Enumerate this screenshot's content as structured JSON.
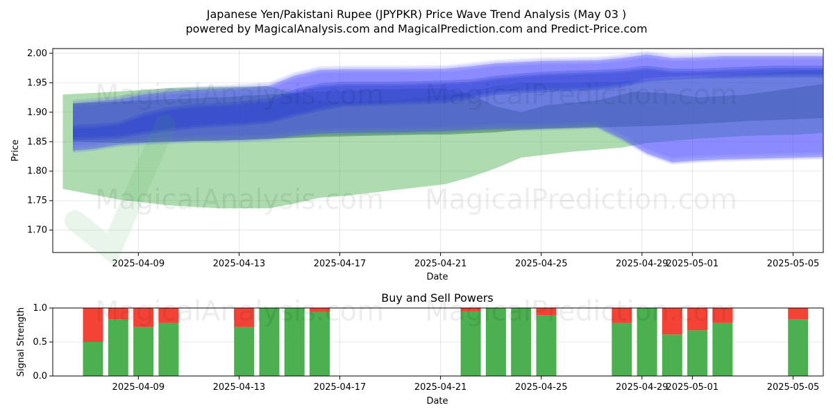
{
  "page": {
    "title_line1": "Japanese Yen/Pakistani Rupee (JPYPKR) Price Wave Trend Analysis (May 03 )",
    "title_line2": "powered by MagicalAnalysis.com and MagicalPrediction.com and Predict-Price.com",
    "watermarks": [
      "MagicalAnalysis.com",
      "MagicalPrediction.com",
      "MagicalAnalysis.com",
      "MagicalPrediction.com",
      "MagicalAnalysis.com",
      "MagicalPrediction.com"
    ]
  },
  "chart_data": [
    {
      "type": "area",
      "title": "",
      "xlabel": "Date",
      "ylabel": "Price",
      "ylim": [
        1.662,
        2.008
      ],
      "xlim_days": [
        -0.6,
        30.0
      ],
      "x_ticks": [
        {
          "day": 2.8,
          "label": "2025-04-09"
        },
        {
          "day": 6.8,
          "label": "2025-04-13"
        },
        {
          "day": 10.8,
          "label": "2025-04-17"
        },
        {
          "day": 14.8,
          "label": "2025-04-21"
        },
        {
          "day": 18.8,
          "label": "2025-04-25"
        },
        {
          "day": 22.8,
          "label": "2025-04-29"
        },
        {
          "day": 24.8,
          "label": "2025-05-01"
        },
        {
          "day": 28.8,
          "label": "2025-05-05"
        }
      ],
      "y_ticks": [
        1.7,
        1.75,
        1.8,
        1.85,
        1.9,
        1.95,
        2.0
      ],
      "y_tick_labels": [
        "1.70",
        "1.75",
        "1.80",
        "1.85",
        "1.90",
        "1.95",
        "2.00"
      ],
      "series": [
        {
          "name": "green wave band (wide)",
          "color": "#4caf50",
          "x": [
            -0.2,
            2.0,
            4.0,
            6.0,
            8.0,
            9.0,
            10.0,
            11.0,
            13.0,
            15.0,
            16.0,
            17.0,
            18.0,
            20.0,
            22.0,
            23.0,
            25.0,
            27.0,
            29.0,
            30.0
          ],
          "upper": [
            1.93,
            1.935,
            1.941,
            1.943,
            1.944,
            1.932,
            1.918,
            1.918,
            1.92,
            1.93,
            1.935,
            1.945,
            1.95,
            1.95,
            1.952,
            1.955,
            1.96,
            1.965,
            1.97,
            1.972
          ],
          "lower": [
            1.77,
            1.752,
            1.742,
            1.737,
            1.737,
            1.745,
            1.755,
            1.758,
            1.768,
            1.778,
            1.79,
            1.805,
            1.823,
            1.833,
            1.84,
            1.848,
            1.855,
            1.86,
            1.862,
            1.865
          ]
        },
        {
          "name": "green wave band (dark)",
          "color": "#2e7d32",
          "x": [
            0.2,
            2.0,
            4.0,
            6.0,
            8.0,
            10.0,
            12.0,
            14.0,
            15.0,
            16.0,
            17.0,
            18.0,
            19.0,
            21.0,
            22.5,
            24.0,
            25.0,
            27.0,
            30.0
          ],
          "upper": [
            1.915,
            1.918,
            1.922,
            1.925,
            1.93,
            1.935,
            1.938,
            1.94,
            1.94,
            1.93,
            1.91,
            1.9,
            1.912,
            1.92,
            1.935,
            1.932,
            1.925,
            1.93,
            1.948
          ],
          "lower": [
            1.85,
            1.848,
            1.85,
            1.852,
            1.855,
            1.858,
            1.86,
            1.862,
            1.862,
            1.864,
            1.866,
            1.87,
            1.872,
            1.874,
            1.876,
            1.878,
            1.88,
            1.885,
            1.89
          ]
        },
        {
          "name": "blue wave band",
          "color": "#4444ff",
          "x": [
            0.2,
            1.0,
            2.0,
            3.0,
            4.0,
            5.0,
            6.0,
            7.0,
            8.0,
            9.0,
            10.0,
            11.0,
            13.0,
            15.0,
            16.0,
            17.0,
            18.0,
            19.0,
            21.0,
            22.0,
            23.0,
            24.0,
            25.0,
            26.0,
            28.0,
            30.0
          ],
          "upper": [
            1.915,
            1.918,
            1.922,
            1.93,
            1.935,
            1.938,
            1.94,
            1.942,
            1.945,
            1.962,
            1.972,
            1.973,
            1.973,
            1.974,
            1.978,
            1.983,
            1.985,
            1.987,
            1.988,
            1.992,
            1.998,
            1.992,
            1.993,
            1.995,
            1.995,
            1.995
          ],
          "lower": [
            1.835,
            1.838,
            1.845,
            1.848,
            1.85,
            1.852,
            1.852,
            1.853,
            1.855,
            1.86,
            1.864,
            1.865,
            1.866,
            1.868,
            1.87,
            1.872,
            1.872,
            1.873,
            1.876,
            1.855,
            1.83,
            1.815,
            1.818,
            1.82,
            1.822,
            1.824
          ]
        },
        {
          "name": "blue central trend",
          "color": "#2a3fd0",
          "x": [
            0.2,
            1.0,
            2.0,
            3.0,
            4.0,
            5.0,
            6.0,
            7.0,
            8.0,
            9.0,
            10.0,
            11.0,
            13.0,
            15.0,
            16.0,
            17.0,
            18.0,
            19.0,
            21.0,
            22.0,
            23.0,
            24.0,
            25.0,
            26.0,
            28.0,
            30.0
          ],
          "upper": [
            1.875,
            1.876,
            1.88,
            1.895,
            1.905,
            1.91,
            1.912,
            1.915,
            1.92,
            1.935,
            1.945,
            1.948,
            1.948,
            1.95,
            1.952,
            1.958,
            1.962,
            1.965,
            1.968,
            1.97,
            1.975,
            1.97,
            1.97,
            1.972,
            1.975,
            1.975
          ],
          "lower": [
            1.855,
            1.856,
            1.858,
            1.865,
            1.87,
            1.875,
            1.878,
            1.88,
            1.884,
            1.895,
            1.905,
            1.912,
            1.915,
            1.918,
            1.925,
            1.932,
            1.935,
            1.937,
            1.94,
            1.945,
            1.955,
            1.958,
            1.96,
            1.96,
            1.962,
            1.962
          ]
        }
      ]
    },
    {
      "type": "bar",
      "title": "Buy and Sell Powers",
      "xlabel": "Date",
      "ylabel": "Signal Strength",
      "ylim": [
        0,
        1.0
      ],
      "y_ticks": [
        0.0,
        0.5,
        1.0
      ],
      "y_tick_labels": [
        "0.0",
        "0.5",
        "1.0"
      ],
      "x_ticks": [
        {
          "day": 2.8,
          "label": "2025-04-09"
        },
        {
          "day": 6.8,
          "label": "2025-04-13"
        },
        {
          "day": 10.8,
          "label": "2025-04-17"
        },
        {
          "day": 14.8,
          "label": "2025-04-21"
        },
        {
          "day": 18.8,
          "label": "2025-04-25"
        },
        {
          "day": 22.8,
          "label": "2025-04-29"
        },
        {
          "day": 24.8,
          "label": "2025-05-01"
        },
        {
          "day": 28.8,
          "label": "2025-05-05"
        }
      ],
      "legend_colors": {
        "buy": "#4caf50",
        "sell": "#f44336"
      },
      "bars": [
        {
          "day": 1.0,
          "buy": 0.5
        },
        {
          "day": 2.0,
          "buy": 0.83
        },
        {
          "day": 3.0,
          "buy": 0.72
        },
        {
          "day": 4.0,
          "buy": 0.78
        },
        {
          "day": 7.0,
          "buy": 0.72
        },
        {
          "day": 8.0,
          "buy": 1.0
        },
        {
          "day": 9.0,
          "buy": 1.0
        },
        {
          "day": 10.0,
          "buy": 0.94
        },
        {
          "day": 16.0,
          "buy": 0.95
        },
        {
          "day": 17.0,
          "buy": 1.0
        },
        {
          "day": 18.0,
          "buy": 1.0
        },
        {
          "day": 19.0,
          "buy": 0.89
        },
        {
          "day": 22.0,
          "buy": 0.78
        },
        {
          "day": 23.0,
          "buy": 1.0
        },
        {
          "day": 24.0,
          "buy": 0.61
        },
        {
          "day": 25.0,
          "buy": 0.67
        },
        {
          "day": 26.0,
          "buy": 0.78
        },
        {
          "day": 29.0,
          "buy": 0.83
        }
      ]
    }
  ]
}
